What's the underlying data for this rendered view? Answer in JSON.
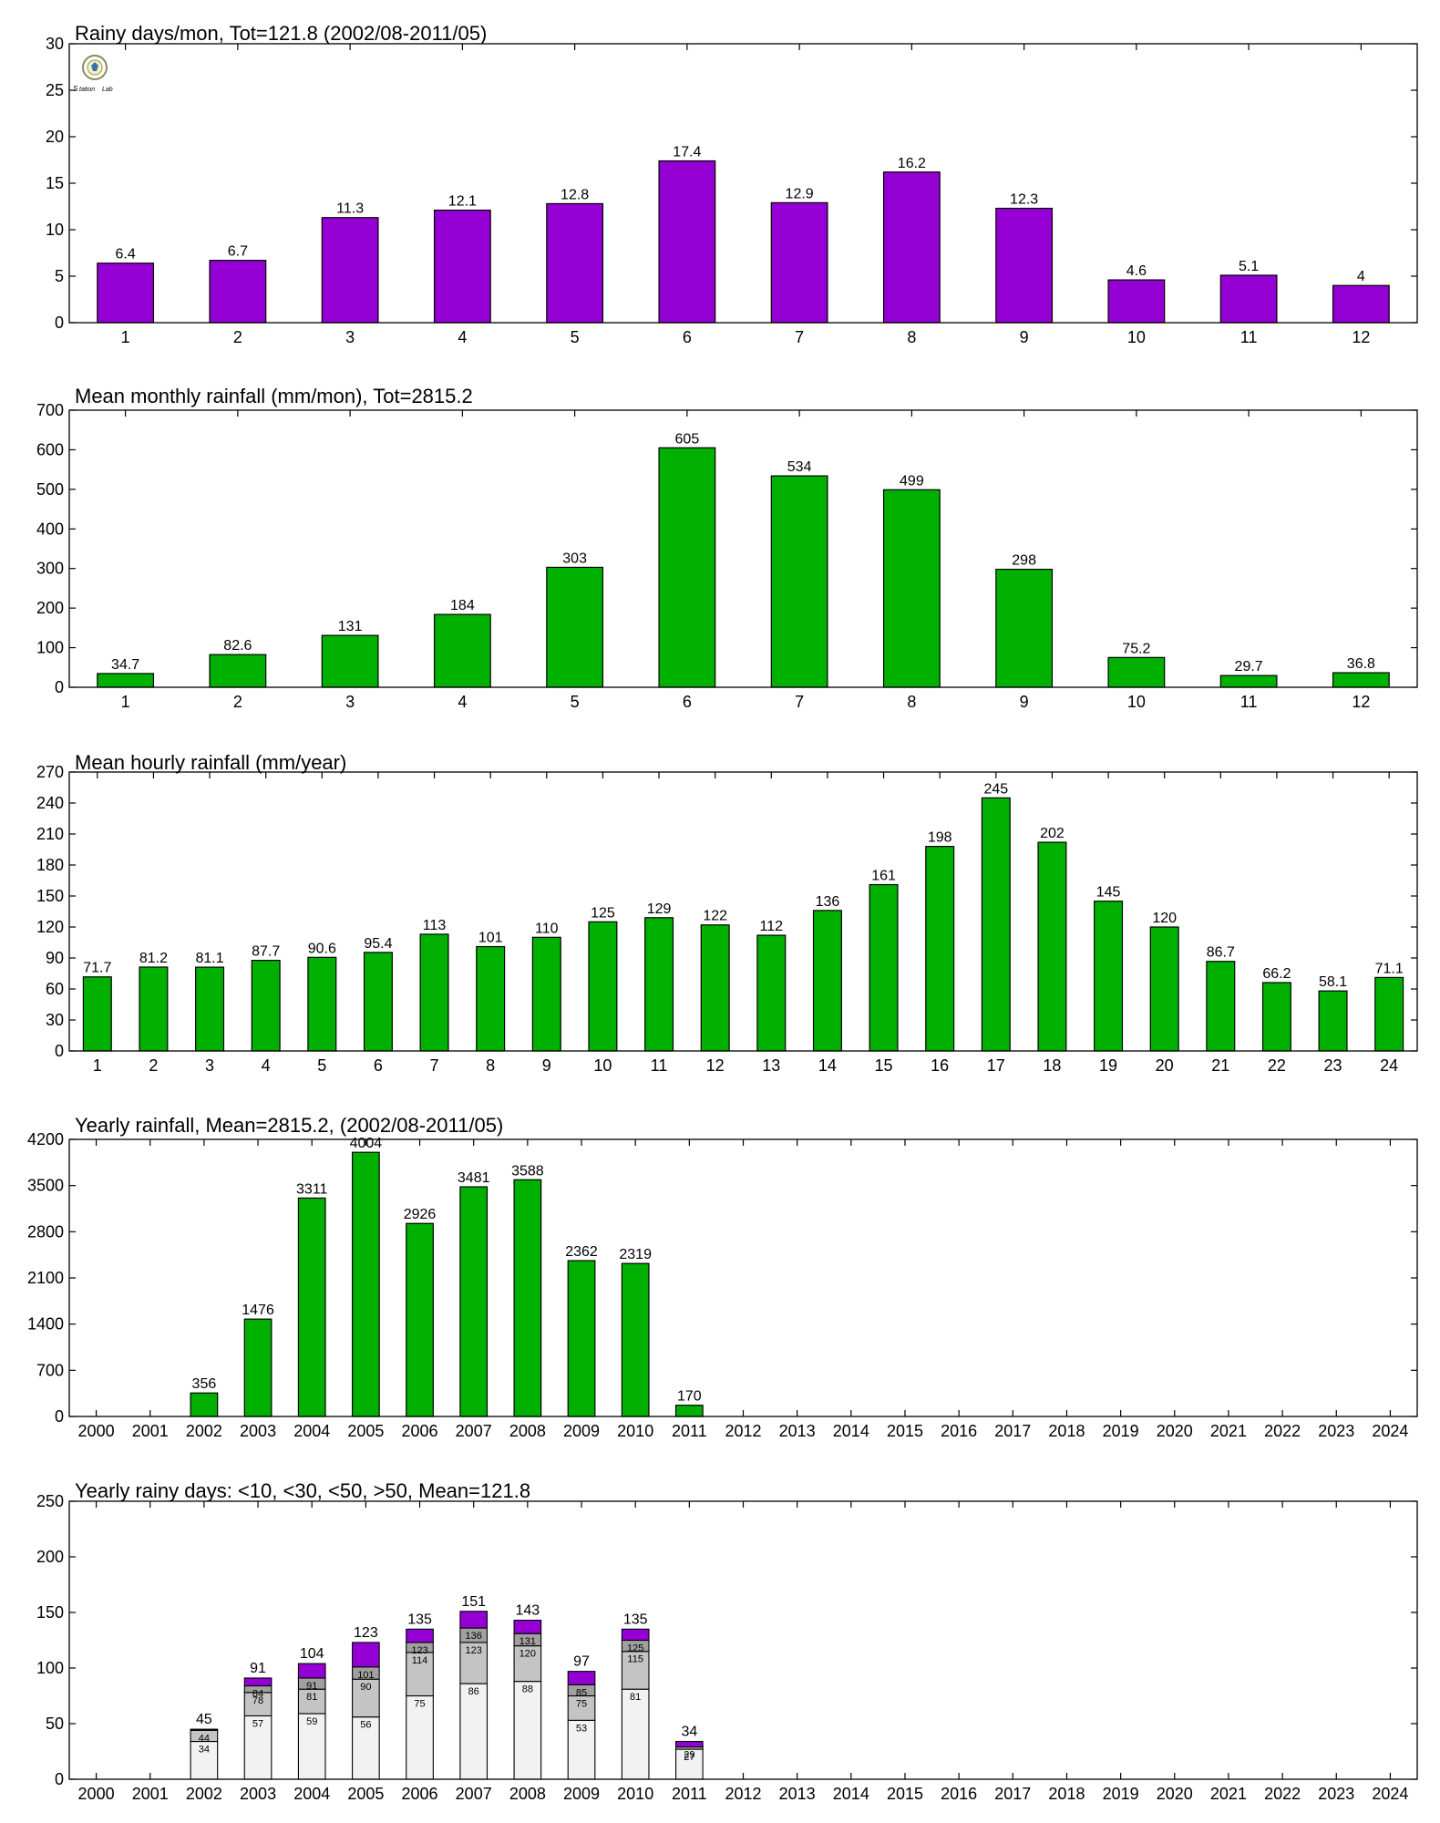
{
  "colors": {
    "purple": "#9400D3",
    "green": "#00B000",
    "seg_lt10": "#F2F2F2",
    "seg_lt30": "#C4C4C4",
    "seg_lt50": "#A0A0A0",
    "seg_gt50": "#9400D3"
  },
  "logo": {
    "icon": "station-lab-logo-icon",
    "text": "Station Lab"
  },
  "chart_data": [
    {
      "type": "bar",
      "title": "Rainy days/mon, Tot=121.8 (2002/08-2011/05)",
      "categories": [
        "1",
        "2",
        "3",
        "4",
        "5",
        "6",
        "7",
        "8",
        "9",
        "10",
        "11",
        "12"
      ],
      "values": [
        6.4,
        6.7,
        11.3,
        12.1,
        12.8,
        17.4,
        12.9,
        16.2,
        12.3,
        4.6,
        5.1,
        4
      ],
      "value_labels": [
        "6.4",
        "6.7",
        "11.3",
        "12.1",
        "12.8",
        "17.4",
        "12.9",
        "16.2",
        "12.3",
        "4.6",
        "5.1",
        "4"
      ],
      "ylim": [
        0,
        30
      ],
      "yticks": [
        0,
        5,
        10,
        15,
        20,
        25,
        30
      ],
      "color": "#9400D3"
    },
    {
      "type": "bar",
      "title": "Mean monthly rainfall (mm/mon), Tot=2815.2",
      "categories": [
        "1",
        "2",
        "3",
        "4",
        "5",
        "6",
        "7",
        "8",
        "9",
        "10",
        "11",
        "12"
      ],
      "values": [
        34.7,
        82.6,
        131,
        184,
        303,
        605,
        534,
        499,
        298,
        75.2,
        29.7,
        36.8
      ],
      "value_labels": [
        "34.7",
        "82.6",
        "131",
        "184",
        "303",
        "605",
        "534",
        "499",
        "298",
        "75.2",
        "29.7",
        "36.8"
      ],
      "ylim": [
        0,
        700
      ],
      "yticks": [
        0,
        100,
        200,
        300,
        400,
        500,
        600,
        700
      ],
      "color": "#00B000"
    },
    {
      "type": "bar",
      "title": "Mean hourly rainfall (mm/year)",
      "categories": [
        "1",
        "2",
        "3",
        "4",
        "5",
        "6",
        "7",
        "8",
        "9",
        "10",
        "11",
        "12",
        "13",
        "14",
        "15",
        "16",
        "17",
        "18",
        "19",
        "20",
        "21",
        "22",
        "23",
        "24"
      ],
      "values": [
        71.7,
        81.2,
        81.1,
        87.7,
        90.6,
        95.4,
        113,
        101,
        110,
        125,
        129,
        122,
        112,
        136,
        161,
        198,
        245,
        202,
        145,
        120,
        86.7,
        66.2,
        58.1,
        71.1
      ],
      "value_labels": [
        "71.7",
        "81.2",
        "81.1",
        "87.7",
        "90.6",
        "95.4",
        "113",
        "101",
        "110",
        "125",
        "129",
        "122",
        "112",
        "136",
        "161",
        "198",
        "245",
        "202",
        "145",
        "120",
        "86.7",
        "66.2",
        "58.1",
        "71.1"
      ],
      "ylim": [
        0,
        270
      ],
      "yticks": [
        0,
        30,
        60,
        90,
        120,
        150,
        180,
        210,
        240,
        270
      ],
      "color": "#00B000"
    },
    {
      "type": "bar",
      "title": "Yearly rainfall, Mean=2815.2, (2002/08-2011/05)",
      "categories": [
        "2000",
        "2001",
        "2002",
        "2003",
        "2004",
        "2005",
        "2006",
        "2007",
        "2008",
        "2009",
        "2010",
        "2011",
        "2012",
        "2013",
        "2014",
        "2015",
        "2016",
        "2017",
        "2018",
        "2019",
        "2020",
        "2021",
        "2022",
        "2023",
        "2024"
      ],
      "values": [
        null,
        null,
        356,
        1476,
        3311,
        4004,
        2926,
        3481,
        3588,
        2362,
        2319,
        170,
        null,
        null,
        null,
        null,
        null,
        null,
        null,
        null,
        null,
        null,
        null,
        null,
        null
      ],
      "value_labels": [
        "",
        "",
        "356",
        "1476",
        "3311",
        "4004",
        "2926",
        "3481",
        "3588",
        "2362",
        "2319",
        "170",
        "",
        "",
        "",
        "",
        "",
        "",
        "",
        "",
        "",
        "",
        "",
        "",
        ""
      ],
      "ylim": [
        0,
        4200
      ],
      "yticks": [
        0,
        700,
        1400,
        2100,
        2800,
        3500,
        4200
      ],
      "color": "#00B000"
    },
    {
      "type": "bar",
      "stacked": true,
      "title": "Yearly rainy days: <10, <30, <50, >50, Mean=121.8",
      "categories": [
        "2000",
        "2001",
        "2002",
        "2003",
        "2004",
        "2005",
        "2006",
        "2007",
        "2008",
        "2009",
        "2010",
        "2011",
        "2012",
        "2013",
        "2014",
        "2015",
        "2016",
        "2017",
        "2018",
        "2019",
        "2020",
        "2021",
        "2022",
        "2023",
        "2024"
      ],
      "cumulative": {
        "lt10": [
          null,
          null,
          34,
          57,
          59,
          56,
          75,
          86,
          88,
          53,
          81,
          27,
          null,
          null,
          null,
          null,
          null,
          null,
          null,
          null,
          null,
          null,
          null,
          null,
          null
        ],
        "lt30": [
          null,
          null,
          44,
          78,
          81,
          90,
          114,
          123,
          120,
          75,
          115,
          29,
          null,
          null,
          null,
          null,
          null,
          null,
          null,
          null,
          null,
          null,
          null,
          null,
          null
        ],
        "lt50": [
          null,
          null,
          44,
          84,
          91,
          101,
          123,
          136,
          131,
          85,
          125,
          29,
          null,
          null,
          null,
          null,
          null,
          null,
          null,
          null,
          null,
          null,
          null,
          null,
          null
        ],
        "total": [
          null,
          null,
          45,
          91,
          104,
          123,
          135,
          151,
          143,
          97,
          135,
          34,
          null,
          null,
          null,
          null,
          null,
          null,
          null,
          null,
          null,
          null,
          null,
          null,
          null
        ]
      },
      "segment_labels": {
        "lt10": [
          "",
          "",
          "34",
          "57",
          "59",
          "56",
          "75",
          "86",
          "88",
          "53",
          "81",
          "27",
          "",
          "",
          "",
          "",
          "",
          "",
          "",
          "",
          "",
          "",
          "",
          "",
          ""
        ],
        "lt30": [
          "",
          "",
          "44",
          "78",
          "81",
          "90",
          "114",
          "123",
          "120",
          "75",
          "115",
          "29",
          "",
          "",
          "",
          "",
          "",
          "",
          "",
          "",
          "",
          "",
          "",
          "",
          ""
        ],
        "lt50": [
          "",
          "",
          "",
          "84",
          "91",
          "101",
          "123",
          "136",
          "131",
          "85",
          "125",
          "",
          "",
          "",
          "",
          "",
          "",
          "",
          "",
          "",
          "",
          "",
          "",
          "",
          ""
        ],
        "total": [
          "",
          "",
          "45",
          "91",
          "104",
          "123",
          "135",
          "151",
          "143",
          "97",
          "135",
          "34",
          "",
          "",
          "",
          "",
          "",
          "",
          "",
          "",
          "",
          "",
          "",
          "",
          ""
        ]
      },
      "ylim": [
        0,
        250
      ],
      "yticks": [
        0,
        50,
        100,
        150,
        200,
        250
      ]
    }
  ]
}
